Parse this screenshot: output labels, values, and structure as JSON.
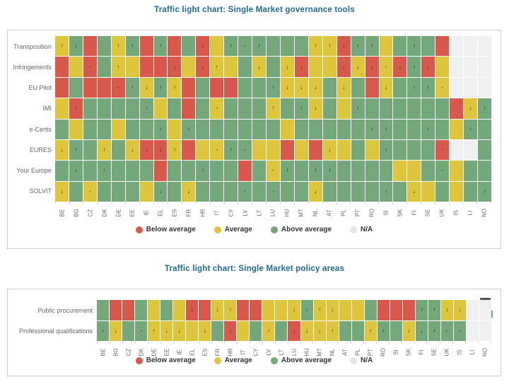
{
  "colors": {
    "below_average": "#d9584c",
    "average": "#ddc53c",
    "above_average": "#74a87a",
    "na": "#f0f0f0",
    "title": "#1d6a96",
    "axis_label": "#666666",
    "legend_text": "#333333",
    "panel_border": "#cccccc",
    "menu_icon": "#555555"
  },
  "cell_codes": {
    "r": "below average",
    "y": "average",
    "g": "above average",
    "n": "not available"
  },
  "trend_glyphs": {
    "u": "↑",
    "d": "↓",
    "s": "-"
  },
  "legend": {
    "items": [
      {
        "code": "r",
        "label": "Below average"
      },
      {
        "code": "y",
        "label": "Average"
      },
      {
        "code": "g",
        "label": "Above average"
      },
      {
        "code": "n",
        "label": "N/A"
      }
    ]
  },
  "charts": [
    {
      "title": "Traffic light chart: Single Market governance tools",
      "columns": [
        "BE",
        "BG",
        "CZ",
        "DK",
        "DE",
        "EE",
        "IE",
        "EL",
        "ES",
        "FR",
        "HR",
        "IT",
        "CY",
        "LV",
        "LT",
        "LU",
        "HU",
        "MT",
        "NL",
        "AT",
        "PL",
        "PT",
        "RO",
        "SI",
        "SK",
        "FI",
        "SE",
        "UK",
        "IS",
        "LI",
        "NO"
      ],
      "rows": [
        {
          "label": "Transposition",
          "cells": [
            "yu",
            "gd",
            "r",
            "g",
            "yu",
            "gu",
            "r",
            "gu",
            "r",
            "g",
            "rd",
            "y",
            "gu",
            "gs",
            "gu",
            "g",
            "g",
            "g",
            "yu",
            "yu",
            "rd",
            "gu",
            "gu",
            "y",
            "g",
            "gu",
            "g",
            "r",
            "n",
            "n",
            "n"
          ]
        },
        {
          "label": "Infringements",
          "cells": [
            "r",
            "y",
            "rs",
            "g",
            "yu",
            "y",
            "r",
            "r",
            "rd",
            "y",
            "rd",
            "yu",
            "y",
            "g",
            "yd",
            "g",
            "yd",
            "rd",
            "y",
            "y",
            "rd",
            "yd",
            "rd",
            "ys",
            "rd",
            "gu",
            "rd",
            "y",
            "n",
            "n",
            "n"
          ]
        },
        {
          "label": "EU Pilot",
          "cells": [
            "r",
            "g",
            "r",
            "r",
            "rs",
            "gu",
            "yd",
            "gu",
            "yu",
            "r",
            "g",
            "r",
            "r",
            "g",
            "g",
            "gu",
            "yd",
            "yd",
            "yd",
            "g",
            "yd",
            "g",
            "r",
            "yd",
            "g",
            "gu",
            "gu",
            "ys",
            "n",
            "n",
            "n"
          ]
        },
        {
          "label": "IMI",
          "cells": [
            "y",
            "rd",
            "g",
            "g",
            "g",
            "g",
            "gu",
            "y",
            "g",
            "r",
            "g",
            "ys",
            "g",
            "g",
            "g",
            "yu",
            "g",
            "gu",
            "yd",
            "g",
            "y",
            "gu",
            "g",
            "g",
            "g",
            "g",
            "g",
            "g",
            "r",
            "yd",
            "gu"
          ]
        },
        {
          "label": "e-Certis",
          "cells": [
            "g",
            "y",
            "g",
            "g",
            "y",
            "g",
            "g",
            "gu",
            "y",
            "gu",
            "g",
            "g",
            "g",
            "g",
            "g",
            "g",
            "y",
            "g",
            "g",
            "g",
            "g",
            "g",
            "gu",
            "gu",
            "g",
            "g",
            "gu",
            "g",
            "y",
            "gu",
            "g"
          ]
        },
        {
          "label": "EURES",
          "cells": [
            "yd",
            "gu",
            "g",
            "yu",
            "g",
            "yd",
            "rd",
            "rd",
            "yu",
            "r",
            "y",
            "ys",
            "gu",
            "gs",
            "y",
            "y",
            "r",
            "y",
            "r",
            "yd",
            "y",
            "g",
            "y",
            "gu",
            "g",
            "g",
            "g",
            "rs",
            "n",
            "n",
            "g"
          ]
        },
        {
          "label": "Your Europe",
          "cells": [
            "g",
            "gd",
            "g",
            "gu",
            "g",
            "g",
            "g",
            "r",
            "g",
            "g",
            "gu",
            "g",
            "g",
            "r",
            "g",
            "ys",
            "gu",
            "g",
            "gu",
            "gu",
            "g",
            "g",
            "g",
            "g",
            "y",
            "y",
            "g",
            "gs",
            "y",
            "g",
            "g"
          ]
        },
        {
          "label": "SOLVIT",
          "cells": [
            "yd",
            "g",
            "ys",
            "g",
            "g",
            "g",
            "y",
            "gd",
            "g",
            "yd",
            "g",
            "g",
            "g",
            "gs",
            "g",
            "gs",
            "g",
            "g",
            "yd",
            "g",
            "g",
            "g",
            "g",
            "gu",
            "g",
            "yd",
            "y",
            "g",
            "y",
            "g",
            "gu"
          ]
        }
      ],
      "menu_accent": false
    },
    {
      "title": "Traffic light chart: Single Market policy areas",
      "columns": [
        "BE",
        "BG",
        "CZ",
        "DK",
        "DE",
        "EE",
        "IE",
        "EL",
        "ES",
        "FR",
        "HR",
        "IT",
        "CY",
        "LV",
        "LT",
        "LU",
        "HU",
        "MT",
        "NL",
        "AT",
        "PL",
        "PT",
        "RO",
        "SI",
        "SK",
        "FI",
        "SE",
        "UK",
        "IS",
        "LI",
        "NO"
      ],
      "rows": [
        {
          "label": "Public procurement",
          "cells": [
            "g",
            "r",
            "r",
            "g",
            "y",
            "g",
            "y",
            "rd",
            "r",
            "yd",
            "yu",
            "r",
            "r",
            "y",
            "y",
            "yd",
            "gd",
            "yu",
            "yd",
            "y",
            "y",
            "g",
            "r",
            "r",
            "r",
            "gu",
            "gu",
            "yd",
            "yd",
            "n",
            "n"
          ]
        },
        {
          "label": "Professional qualifications",
          "cells": [
            "gu",
            "yd",
            "g",
            "gs",
            "yu",
            "yd",
            "yd",
            "y",
            "yd",
            "g",
            "rd",
            "y",
            "g",
            "yu",
            "g",
            "rd",
            "yd",
            "yd",
            "yu",
            "g",
            "g",
            "yu",
            "gu",
            "g",
            "yd",
            "gd",
            "gu",
            "gs",
            "gs",
            "n",
            "n"
          ]
        }
      ],
      "menu_accent": true
    }
  ],
  "chart_data": [
    {
      "type": "heatmap",
      "title": "Traffic light chart: Single Market governance tools",
      "x_categories": [
        "BE",
        "BG",
        "CZ",
        "DK",
        "DE",
        "EE",
        "IE",
        "EL",
        "ES",
        "FR",
        "HR",
        "IT",
        "CY",
        "LV",
        "LT",
        "LU",
        "HU",
        "MT",
        "NL",
        "AT",
        "PL",
        "PT",
        "RO",
        "SI",
        "SK",
        "FI",
        "SE",
        "UK",
        "IS",
        "LI",
        "NO"
      ],
      "y_categories": [
        "Transposition",
        "Infringements",
        "EU Pilot",
        "IMI",
        "e-Certis",
        "EURES",
        "Your Europe",
        "SOLVIT"
      ],
      "value_scale": {
        "r": "Below average",
        "y": "Average",
        "g": "Above average",
        "n": "N/A",
        "u": "trend up",
        "d": "trend down",
        "s": "trend stable"
      },
      "legend_position": "bottom",
      "grid": "white gaps between cells"
    },
    {
      "type": "heatmap",
      "title": "Traffic light chart: Single Market policy areas",
      "x_categories": [
        "BE",
        "BG",
        "CZ",
        "DK",
        "DE",
        "EE",
        "IE",
        "EL",
        "ES",
        "FR",
        "HR",
        "IT",
        "CY",
        "LV",
        "LT",
        "LU",
        "HU",
        "MT",
        "NL",
        "AT",
        "PL",
        "PT",
        "RO",
        "SI",
        "SK",
        "FI",
        "SE",
        "UK",
        "IS",
        "LI",
        "NO"
      ],
      "y_categories": [
        "Public procurement",
        "Professional qualifications"
      ],
      "value_scale": {
        "r": "Below average",
        "y": "Average",
        "g": "Above average",
        "n": "N/A",
        "u": "trend up",
        "d": "trend down",
        "s": "trend stable"
      },
      "legend_position": "bottom",
      "grid": "white gaps between cells"
    }
  ]
}
